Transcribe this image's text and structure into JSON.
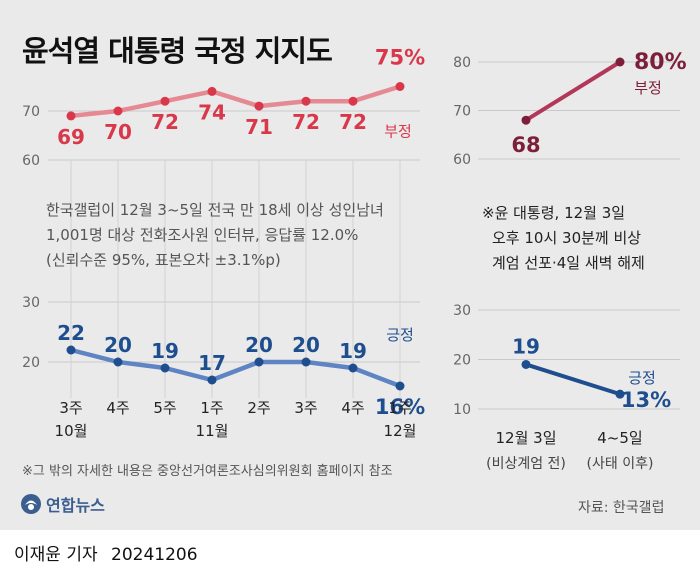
{
  "title": "윤석열 대통령 국정 지지도",
  "note_main": [
    "한국갤럽이 12월 3~5일 전국 만 18세 이상 성인남녀",
    "1,001명 대상 전화조사원 인터뷰, 응답률 12.0%",
    "(신뢰수준 95%, 표본오차 ±3.1%p)"
  ],
  "note_right": [
    "※윤 대통령, 12월 3일",
    "오후 10시 30분께 비상",
    "계엄 선포·4일 새벽 해제"
  ],
  "footnote": "※그 밖의 자세한 내용은 중앙선거여론조사심의위원회 홈페이지 참조",
  "source": "자료: 한국갤럽",
  "logo_text": "연합뉴스",
  "reporter": "이재윤 기자",
  "date": "20241206",
  "colors": {
    "negative": "#d9374a",
    "negative_line": "#e58a93",
    "negative_dark": "#7b1f3a",
    "positive": "#1f4e8f",
    "positive_line": "#5f84c4",
    "background": "#eaeaea"
  },
  "chart_data": [
    {
      "type": "line",
      "categories": [
        "3주",
        "4주",
        "5주",
        "1주",
        "2주",
        "3주",
        "4주",
        "1주"
      ],
      "category_groups": [
        [
          "10월",
          0
        ],
        [
          "11월",
          3
        ],
        [
          "12월",
          7
        ]
      ],
      "series": [
        {
          "name": "부정",
          "values": [
            69,
            70,
            72,
            74,
            71,
            72,
            72,
            75
          ],
          "labels": [
            "69",
            "70",
            "72",
            "74",
            "71",
            "72",
            "72",
            "75%"
          ]
        },
        {
          "name": "긍정",
          "values": [
            22,
            20,
            19,
            17,
            20,
            20,
            19,
            16
          ],
          "labels": [
            "22",
            "20",
            "19",
            "17",
            "20",
            "20",
            "19",
            "16%"
          ]
        }
      ],
      "upper_yticks": [
        "70",
        "60"
      ],
      "upper_ylim": [
        60,
        80
      ],
      "lower_yticks": [
        "30",
        "20"
      ],
      "lower_ylim": [
        14,
        32
      ],
      "grid": true
    },
    {
      "type": "line",
      "categories": [
        "12월 3일",
        "4~5일"
      ],
      "sublabels": [
        "(비상계엄 전)",
        "(사태 이후)"
      ],
      "series": [
        {
          "name": "부정",
          "values": [
            68,
            80
          ],
          "labels": [
            "68",
            "80%"
          ]
        },
        {
          "name": "긍정",
          "values": [
            19,
            13
          ],
          "labels": [
            "19",
            "13%"
          ]
        }
      ],
      "upper_yticks": [
        "80",
        "70",
        "60"
      ],
      "upper_ylim": [
        60,
        80
      ],
      "lower_yticks": [
        "30",
        "20",
        "10"
      ],
      "lower_ylim": [
        10,
        30
      ],
      "grid": true
    }
  ]
}
